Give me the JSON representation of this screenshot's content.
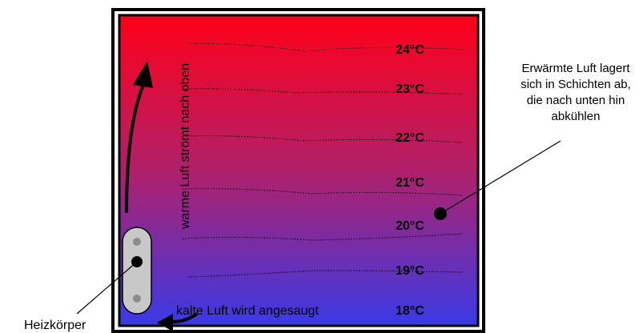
{
  "temperatures": [
    "24°C",
    "23°C",
    "22°C",
    "21°C",
    "20°C",
    "19°C",
    "18°C"
  ],
  "labels": {
    "rising_air": "warme Luft strömt nach oben",
    "intake_air": "kalte Luft wird angesaugt",
    "heater": "Heizkörper",
    "layers_note": "Erwärmte Luft lagert sich in Schichten ab, die nach unten hin abkühlen"
  },
  "colors": {
    "top": "#ff0018",
    "bottom": "#3a3ae6",
    "frame": "#000000",
    "heater_body": "#c8c8c8"
  }
}
